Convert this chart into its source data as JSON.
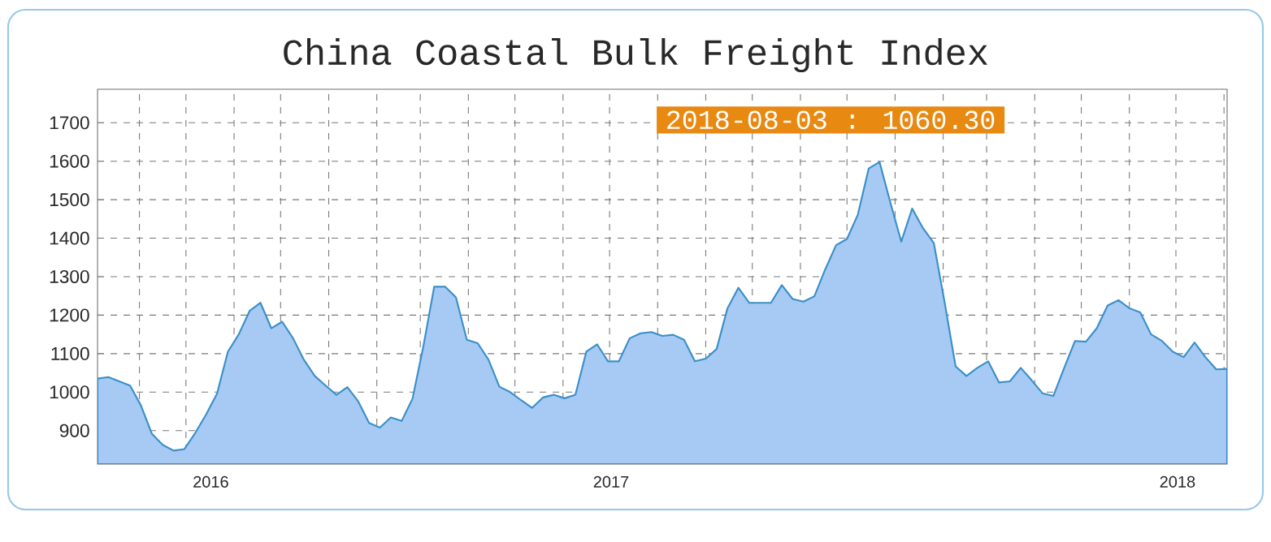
{
  "chart_data": {
    "type": "area",
    "title": "China Coastal Bulk Freight Index",
    "x": [
      "2016-08-05",
      "2016-08-12",
      "2016-08-19",
      "2016-08-26",
      "2016-09-02",
      "2016-09-09",
      "2016-09-16",
      "2016-09-23",
      "2016-09-30",
      "2016-10-07",
      "2016-10-14",
      "2016-10-21",
      "2016-10-28",
      "2016-11-04",
      "2016-11-11",
      "2016-11-18",
      "2016-11-25",
      "2016-12-02",
      "2016-12-09",
      "2016-12-16",
      "2016-12-23",
      "2016-12-30",
      "2017-01-06",
      "2017-01-13",
      "2017-01-20",
      "2017-01-27",
      "2017-02-03",
      "2017-02-10",
      "2017-02-17",
      "2017-02-24",
      "2017-03-03",
      "2017-03-10",
      "2017-03-17",
      "2017-03-24",
      "2017-03-31",
      "2017-04-07",
      "2017-04-14",
      "2017-04-21",
      "2017-04-28",
      "2017-05-05",
      "2017-05-12",
      "2017-05-19",
      "2017-05-26",
      "2017-06-02",
      "2017-06-09",
      "2017-06-16",
      "2017-06-23",
      "2017-06-30",
      "2017-07-07",
      "2017-07-14",
      "2017-07-21",
      "2017-07-28",
      "2017-08-04",
      "2017-08-11",
      "2017-08-18",
      "2017-08-25",
      "2017-09-01",
      "2017-09-08",
      "2017-09-15",
      "2017-09-22",
      "2017-09-29",
      "2017-10-06",
      "2017-10-13",
      "2017-10-20",
      "2017-10-27",
      "2017-11-03",
      "2017-11-10",
      "2017-11-17",
      "2017-11-24",
      "2017-12-01",
      "2017-12-08",
      "2017-12-15",
      "2017-12-22",
      "2017-12-29",
      "2018-01-05",
      "2018-01-12",
      "2018-01-19",
      "2018-01-26",
      "2018-02-02",
      "2018-02-09",
      "2018-02-16",
      "2018-02-23",
      "2018-03-02",
      "2018-03-09",
      "2018-03-16",
      "2018-03-23",
      "2018-03-30",
      "2018-04-06",
      "2018-04-13",
      "2018-04-20",
      "2018-04-27",
      "2018-05-04",
      "2018-05-11",
      "2018-05-18",
      "2018-05-25",
      "2018-06-01",
      "2018-06-08",
      "2018-06-15",
      "2018-06-22",
      "2018-06-29",
      "2018-07-06",
      "2018-07-13",
      "2018-07-20",
      "2018-07-27",
      "2018-08-03"
    ],
    "values": [
      1035,
      1039,
      1028,
      1017,
      965,
      892,
      863,
      848,
      852,
      894,
      942,
      996,
      1105,
      1150,
      1211,
      1232,
      1166,
      1183,
      1140,
      1084,
      1042,
      1017,
      993,
      1013,
      976,
      920,
      908,
      934,
      925,
      983,
      1119,
      1274,
      1274,
      1246,
      1136,
      1127,
      1084,
      1014,
      1000,
      979,
      959,
      986,
      993,
      984,
      993,
      1105,
      1124,
      1080,
      1080,
      1140,
      1153,
      1156,
      1146,
      1149,
      1136,
      1080,
      1087,
      1112,
      1218,
      1271,
      1232,
      1232,
      1232,
      1278,
      1242,
      1235,
      1249,
      1319,
      1382,
      1398,
      1461,
      1581,
      1598,
      1492,
      1391,
      1477,
      1426,
      1387,
      1232,
      1067,
      1042,
      1063,
      1080,
      1025,
      1028,
      1063,
      1031,
      997,
      990,
      1063,
      1133,
      1131,
      1166,
      1225,
      1239,
      1218,
      1207,
      1150,
      1133,
      1105,
      1091,
      1129,
      1091,
      1059,
      1060.3
    ],
    "color": "#a6caf4",
    "xlim": [
      "2016-08-05",
      "2018-08-03"
    ],
    "ylim": [
      813,
      1787
    ],
    "yticks": [
      900,
      1000,
      1100,
      1200,
      1300,
      1400,
      1500,
      1600,
      1700
    ],
    "xticks": [
      {
        "value": "2016-09-01",
        "label": null
      },
      {
        "value": "2016-10-01",
        "label": null
      },
      {
        "value": "2016-10-17",
        "label": "2016"
      },
      {
        "value": "2016-11-01",
        "label": null
      },
      {
        "value": "2016-12-01",
        "label": null
      },
      {
        "value": "2017-01-01",
        "label": null
      },
      {
        "value": "2017-02-01",
        "label": null
      },
      {
        "value": "2017-03-01",
        "label": null
      },
      {
        "value": "2017-04-01",
        "label": null
      },
      {
        "value": "2017-05-01",
        "label": null
      },
      {
        "value": "2017-06-01",
        "label": null
      },
      {
        "value": "2017-07-01",
        "label": null
      },
      {
        "value": "2017-07-02",
        "label": "2017"
      },
      {
        "value": "2017-08-01",
        "label": null
      },
      {
        "value": "2017-09-01",
        "label": null
      },
      {
        "value": "2017-10-01",
        "label": null
      },
      {
        "value": "2017-11-01",
        "label": null
      },
      {
        "value": "2017-12-01",
        "label": null
      },
      {
        "value": "2018-01-01",
        "label": null
      },
      {
        "value": "2018-02-01",
        "label": null
      },
      {
        "value": "2018-03-01",
        "label": null
      },
      {
        "value": "2018-04-01",
        "label": null
      },
      {
        "value": "2018-05-01",
        "label": null
      },
      {
        "value": "2018-06-01",
        "label": null
      },
      {
        "value": "2018-07-01",
        "label": null
      },
      {
        "value": "2018-07-02",
        "label": "2018"
      },
      {
        "value": "2018-08-01",
        "label": null
      }
    ],
    "grid": true,
    "annotations": [
      "2018-08-03 : 1060.30"
    ]
  }
}
